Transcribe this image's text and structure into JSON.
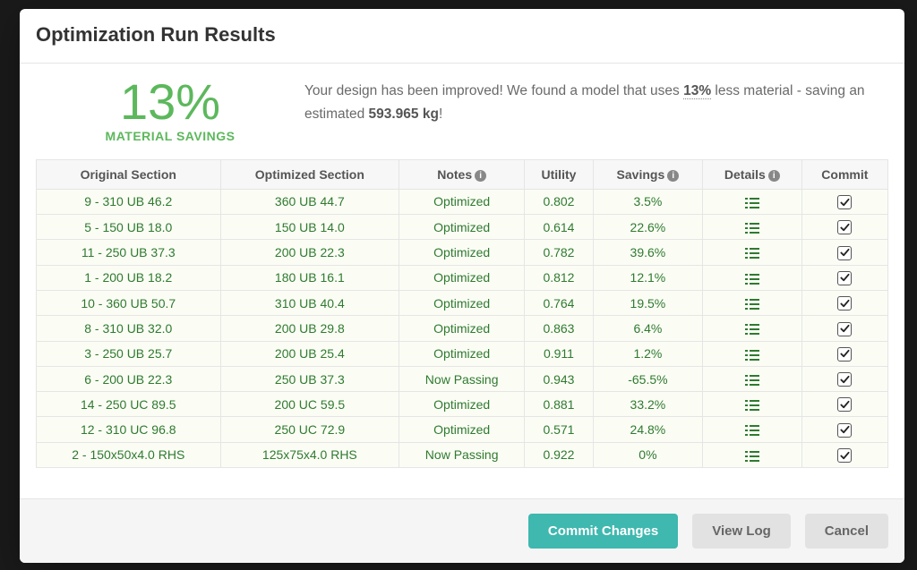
{
  "modal": {
    "title": "Optimization Run Results",
    "savings_percent": "13%",
    "savings_label": "MATERIAL SAVINGS",
    "summary_prefix": "Your design has been improved! We found a model that uses ",
    "summary_pct": "13%",
    "summary_middle": " less material - saving an estimated ",
    "summary_kg": "593.965 kg",
    "summary_suffix": "!"
  },
  "colors": {
    "accent_green": "#5cb85c",
    "primary_button": "#3fb8af",
    "secondary_button": "#e2e2e2",
    "row_bg": "#fbfdf5",
    "header_bg": "#f7f7f7",
    "border": "#e5e5e5",
    "text_muted": "#6a6a6a",
    "cell_text": "#2f7a2f"
  },
  "table": {
    "headers": {
      "original": "Original Section",
      "optimized": "Optimized Section",
      "notes": "Notes",
      "utility": "Utility",
      "savings": "Savings",
      "details": "Details",
      "commit": "Commit"
    },
    "rows": [
      {
        "original": "9 - 310 UB 46.2",
        "optimized": "360 UB 44.7",
        "notes": "Optimized",
        "utility": "0.802",
        "savings": "3.5%",
        "commit": true
      },
      {
        "original": "5 - 150 UB 18.0",
        "optimized": "150 UB 14.0",
        "notes": "Optimized",
        "utility": "0.614",
        "savings": "22.6%",
        "commit": true
      },
      {
        "original": "11 - 250 UB 37.3",
        "optimized": "200 UB 22.3",
        "notes": "Optimized",
        "utility": "0.782",
        "savings": "39.6%",
        "commit": true
      },
      {
        "original": "1 - 200 UB 18.2",
        "optimized": "180 UB 16.1",
        "notes": "Optimized",
        "utility": "0.812",
        "savings": "12.1%",
        "commit": true
      },
      {
        "original": "10 - 360 UB 50.7",
        "optimized": "310 UB 40.4",
        "notes": "Optimized",
        "utility": "0.764",
        "savings": "19.5%",
        "commit": true
      },
      {
        "original": "8 - 310 UB 32.0",
        "optimized": "200 UB 29.8",
        "notes": "Optimized",
        "utility": "0.863",
        "savings": "6.4%",
        "commit": true
      },
      {
        "original": "3 - 250 UB 25.7",
        "optimized": "200 UB 25.4",
        "notes": "Optimized",
        "utility": "0.911",
        "savings": "1.2%",
        "commit": true
      },
      {
        "original": "6 - 200 UB 22.3",
        "optimized": "250 UB 37.3",
        "notes": "Now Passing",
        "utility": "0.943",
        "savings": "-65.5%",
        "commit": true
      },
      {
        "original": "14 - 250 UC 89.5",
        "optimized": "200 UC 59.5",
        "notes": "Optimized",
        "utility": "0.881",
        "savings": "33.2%",
        "commit": true
      },
      {
        "original": "12 - 310 UC 96.8",
        "optimized": "250 UC 72.9",
        "notes": "Optimized",
        "utility": "0.571",
        "savings": "24.8%",
        "commit": true
      },
      {
        "original": "2 - 150x50x4.0 RHS",
        "optimized": "125x75x4.0 RHS",
        "notes": "Now Passing",
        "utility": "0.922",
        "savings": "0%",
        "commit": true
      }
    ]
  },
  "footer": {
    "commit": "Commit Changes",
    "viewlog": "View Log",
    "cancel": "Cancel"
  }
}
